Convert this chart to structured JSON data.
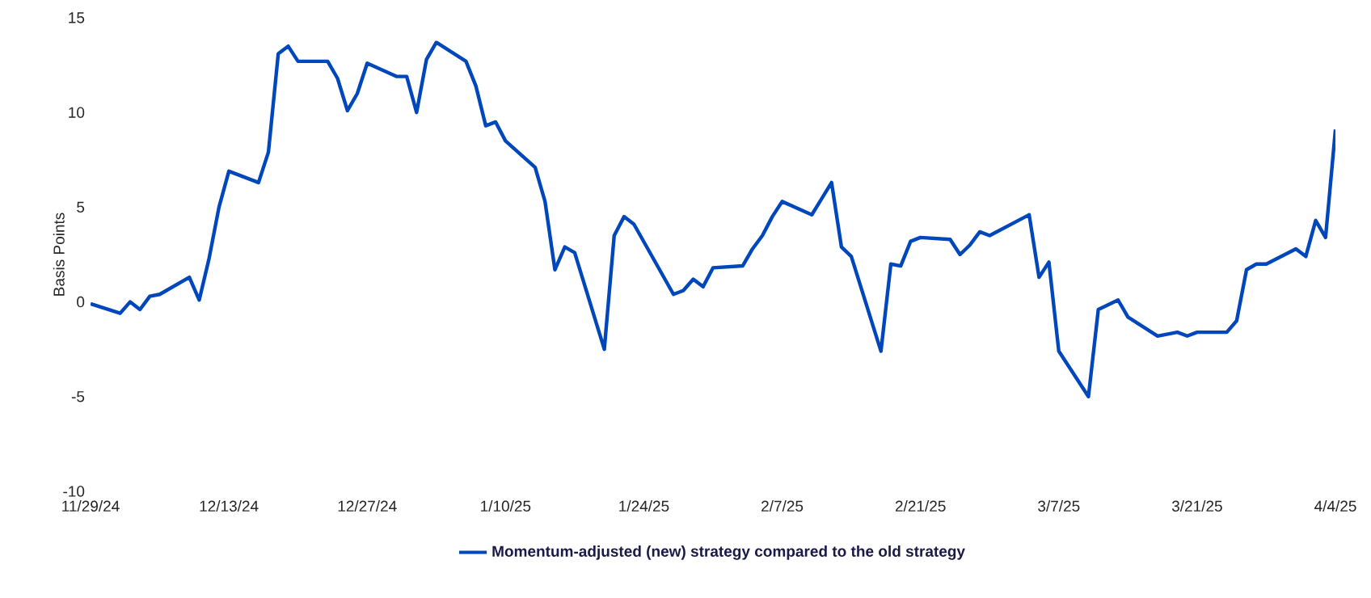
{
  "chart_data": {
    "type": "line",
    "ylabel": "Basis Points",
    "legend": "bottom",
    "marker": "none",
    "line_style": "solid",
    "x": [
      "2024-11-29",
      "2024-12-02",
      "2024-12-03",
      "2024-12-04",
      "2024-12-05",
      "2024-12-06",
      "2024-12-09",
      "2024-12-10",
      "2024-12-11",
      "2024-12-12",
      "2024-12-13",
      "2024-12-16",
      "2024-12-17",
      "2024-12-18",
      "2024-12-19",
      "2024-12-20",
      "2024-12-23",
      "2024-12-24",
      "2024-12-25",
      "2024-12-26",
      "2024-12-27",
      "2024-12-30",
      "2024-12-31",
      "2025-01-01",
      "2025-01-02",
      "2025-01-03",
      "2025-01-06",
      "2025-01-07",
      "2025-01-08",
      "2025-01-09",
      "2025-01-10",
      "2025-01-13",
      "2025-01-14",
      "2025-01-15",
      "2025-01-16",
      "2025-01-17",
      "2025-01-20",
      "2025-01-21",
      "2025-01-22",
      "2025-01-23",
      "2025-01-27",
      "2025-01-28",
      "2025-01-29",
      "2025-01-30",
      "2025-01-31",
      "2025-02-03",
      "2025-02-04",
      "2025-02-05",
      "2025-02-06",
      "2025-02-07",
      "2025-02-10",
      "2025-02-12",
      "2025-02-13",
      "2025-02-14",
      "2025-02-17",
      "2025-02-18",
      "2025-02-19",
      "2025-02-20",
      "2025-02-21",
      "2025-02-24",
      "2025-02-25",
      "2025-02-26",
      "2025-02-27",
      "2025-02-28",
      "2025-03-04",
      "2025-03-05",
      "2025-03-06",
      "2025-03-07",
      "2025-03-10",
      "2025-03-11",
      "2025-03-13",
      "2025-03-14",
      "2025-03-17",
      "2025-03-19",
      "2025-03-20",
      "2025-03-21",
      "2025-03-24",
      "2025-03-25",
      "2025-03-26",
      "2025-03-27",
      "2025-03-28",
      "2025-03-31",
      "2025-04-01",
      "2025-04-02",
      "2025-04-03",
      "2025-04-04"
    ],
    "series": [
      {
        "name": "Momentum-adjusted (new) strategy compared to the old strategy",
        "color": "#0047bb",
        "values": [
          -0.1,
          -0.6,
          0.0,
          -0.4,
          0.3,
          0.4,
          1.3,
          0.1,
          2.3,
          5.0,
          6.9,
          6.3,
          7.9,
          13.1,
          13.5,
          12.7,
          12.7,
          11.8,
          10.1,
          11.0,
          12.6,
          11.9,
          11.9,
          10.0,
          12.8,
          13.7,
          12.7,
          11.4,
          9.3,
          9.5,
          8.5,
          7.1,
          5.3,
          1.7,
          2.9,
          2.6,
          -2.5,
          3.5,
          4.5,
          4.1,
          0.4,
          0.6,
          1.2,
          0.8,
          1.8,
          1.9,
          2.8,
          3.5,
          4.5,
          5.3,
          4.6,
          6.3,
          2.9,
          2.4,
          -2.6,
          2.0,
          1.9,
          3.2,
          3.4,
          3.3,
          2.5,
          3.0,
          3.7,
          3.5,
          4.6,
          1.3,
          2.1,
          -2.6,
          -5.0,
          -0.4,
          0.1,
          -0.8,
          -1.8,
          -1.6,
          -1.8,
          -1.6,
          -1.6,
          -1.0,
          1.7,
          2.0,
          2.0,
          2.8,
          2.4,
          4.3,
          3.4,
          9.1
        ]
      }
    ],
    "xlim": [
      "2024-11-29",
      "2025-04-04"
    ],
    "xticks": [
      {
        "value": "2024-11-29",
        "label": "11/29/24"
      },
      {
        "value": "2024-12-13",
        "label": "12/13/24"
      },
      {
        "value": "2024-12-27",
        "label": "12/27/24"
      },
      {
        "value": "2025-01-10",
        "label": "1/10/25"
      },
      {
        "value": "2025-01-24",
        "label": "1/24/25"
      },
      {
        "value": "2025-02-07",
        "label": "2/7/25"
      },
      {
        "value": "2025-02-21",
        "label": "2/21/25"
      },
      {
        "value": "2025-03-07",
        "label": "3/7/25"
      },
      {
        "value": "2025-03-21",
        "label": "3/21/25"
      },
      {
        "value": "2025-04-04",
        "label": "4/4/25"
      }
    ],
    "ylim": [
      -10,
      15
    ],
    "yticks": [
      -10,
      -5,
      0,
      5,
      10,
      15
    ]
  }
}
